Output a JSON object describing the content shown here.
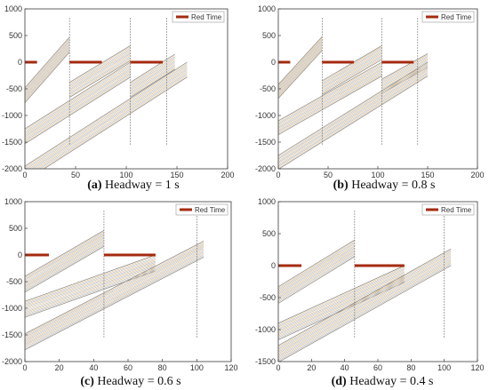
{
  "figure": {
    "legend_label": "Red Time",
    "colors": {
      "red_time": "#a52a0f",
      "trajectory": "#b9b9b9",
      "trajectory_alt": "#e6c08a",
      "axes": "#3a3a3a",
      "background": "#ffffff"
    }
  },
  "chart_data": [
    {
      "type": "line",
      "panel": "a",
      "caption_label": "(a)",
      "caption_text": "Headway = 1 s",
      "xlim": [
        0,
        200
      ],
      "ylim": [
        -2000,
        1000
      ],
      "xticks": [
        0,
        50,
        100,
        150,
        200
      ],
      "yticks": [
        1000,
        500,
        0,
        -500,
        -1000,
        -1500,
        -2000
      ],
      "red_time": [
        [
          0,
          12
        ],
        [
          44,
          76
        ],
        [
          104,
          136
        ]
      ],
      "trajectory_bands": [
        {
          "start_x": 0,
          "start_y": -480,
          "end_x": 44,
          "end_y": 470
        },
        {
          "start_x": 44,
          "start_y": -380,
          "end_x": 104,
          "end_y": 310
        },
        {
          "start_x": 104,
          "start_y": -380,
          "end_x": 148,
          "end_y": 150
        },
        {
          "start_x": 0,
          "start_y": -1250,
          "end_x": 104,
          "end_y": 0
        },
        {
          "start_x": 0,
          "start_y": -1950,
          "end_x": 160,
          "end_y": 0
        }
      ],
      "band_lines": 12,
      "band_width": 280,
      "vertical_marks": [
        44,
        104,
        140
      ]
    },
    {
      "type": "line",
      "panel": "b",
      "caption_label": "(b)",
      "caption_text": "Headway = 0.8 s",
      "xlim": [
        0,
        200
      ],
      "ylim": [
        -2000,
        1000
      ],
      "xticks": [
        0,
        50,
        100,
        150,
        200
      ],
      "yticks": [
        1000,
        500,
        0,
        -500,
        -1000,
        -1500,
        -2000
      ],
      "red_time": [
        [
          0,
          12
        ],
        [
          44,
          76
        ],
        [
          104,
          136
        ]
      ],
      "trajectory_bands": [
        {
          "start_x": 0,
          "start_y": -420,
          "end_x": 44,
          "end_y": 480
        },
        {
          "start_x": 44,
          "start_y": -350,
          "end_x": 104,
          "end_y": 310
        },
        {
          "start_x": 104,
          "start_y": -320,
          "end_x": 150,
          "end_y": 160
        },
        {
          "start_x": 0,
          "start_y": -1100,
          "end_x": 104,
          "end_y": 0
        },
        {
          "start_x": 0,
          "start_y": -1750,
          "end_x": 150,
          "end_y": 0
        }
      ],
      "band_lines": 12,
      "band_width": 260,
      "vertical_marks": [
        44,
        104,
        140
      ]
    },
    {
      "type": "line",
      "panel": "c",
      "caption_label": "(c)",
      "caption_text": "Headway = 0.6 s",
      "xlim": [
        0,
        120
      ],
      "ylim": [
        -2000,
        1000
      ],
      "xticks": [
        0,
        20,
        40,
        60,
        80,
        100,
        120
      ],
      "yticks": [
        1000,
        500,
        0,
        -500,
        -1000,
        -1500,
        -2000
      ],
      "red_time": [
        [
          0,
          14
        ],
        [
          46,
          76
        ]
      ],
      "trajectory_bands": [
        {
          "start_x": 0,
          "start_y": -400,
          "end_x": 46,
          "end_y": 460
        },
        {
          "start_x": 0,
          "start_y": -870,
          "end_x": 76,
          "end_y": 0
        },
        {
          "start_x": 0,
          "start_y": -1480,
          "end_x": 104,
          "end_y": 260
        }
      ],
      "band_lines": 14,
      "band_width": 300,
      "vertical_marks": [
        46,
        100
      ]
    },
    {
      "type": "line",
      "panel": "d",
      "caption_label": "(d)",
      "caption_text": "Headway = 0.4 s",
      "xlim": [
        0,
        120
      ],
      "ylim": [
        -1500,
        1000
      ],
      "xticks": [
        0,
        20,
        40,
        60,
        80,
        100,
        120
      ],
      "yticks": [
        1000,
        500,
        0,
        -500,
        -1000,
        -1500
      ],
      "red_time": [
        [
          0,
          14
        ],
        [
          46,
          76
        ]
      ],
      "trajectory_bands": [
        {
          "start_x": 0,
          "start_y": -330,
          "end_x": 46,
          "end_y": 400
        },
        {
          "start_x": 0,
          "start_y": -900,
          "end_x": 76,
          "end_y": 0
        },
        {
          "start_x": 0,
          "start_y": -1250,
          "end_x": 104,
          "end_y": 260
        }
      ],
      "band_lines": 14,
      "band_width": 260,
      "vertical_marks": [
        46,
        100
      ]
    }
  ]
}
